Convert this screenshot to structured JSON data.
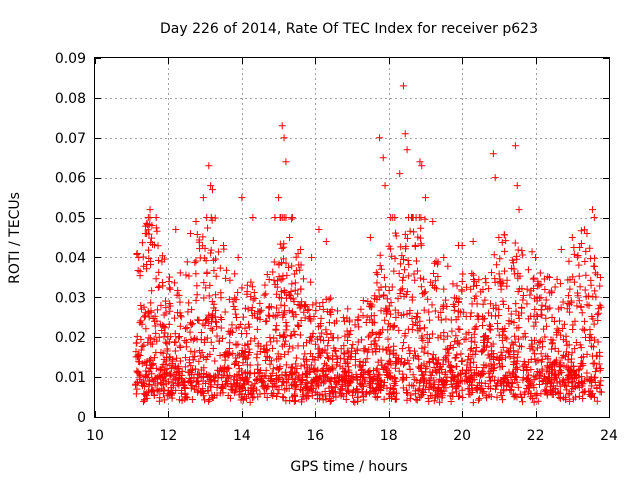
{
  "chart_data": {
    "type": "scatter",
    "title": "Day 226 of 2014, Rate Of TEC Index for receiver p623",
    "xlabel": "GPS time / hours",
    "ylabel": "ROTI / TECUs",
    "xlim": [
      10,
      24
    ],
    "ylim": [
      0,
      0.09
    ],
    "xticks": [
      10,
      12,
      14,
      16,
      18,
      20,
      22,
      24
    ],
    "xtick_labels": [
      "10",
      "12",
      "14",
      "16",
      "18",
      "20",
      "22",
      "24"
    ],
    "yticks": [
      0,
      0.01,
      0.02,
      0.03,
      0.04,
      0.05,
      0.06,
      0.07,
      0.08,
      0.09
    ],
    "ytick_labels": [
      "0",
      "0.01",
      "0.02",
      "0.03",
      "0.04",
      "0.05",
      "0.06",
      "0.07",
      "0.08",
      "0.09"
    ],
    "grid": true,
    "marker": "+",
    "color": "#ff0000",
    "x_data_range": [
      11.1,
      23.8
    ],
    "series": [
      {
        "name": "p623",
        "x": [
          11.15,
          11.4,
          11.5,
          11.55,
          12.2,
          12.6,
          12.75,
          12.95,
          13.1,
          13.15,
          13.2,
          13.5,
          13.9,
          14.0,
          14.3,
          14.9,
          15.0,
          15.1,
          15.15,
          15.2,
          15.3,
          15.6,
          15.9,
          16.1,
          16.3,
          17.5,
          17.75,
          17.85,
          17.9,
          18.3,
          18.4,
          18.45,
          18.5,
          18.85,
          18.9,
          19.0,
          19.2,
          19.5,
          19.9,
          20.0,
          20.3,
          20.85,
          20.9,
          21.0,
          21.45,
          21.5,
          21.55,
          22.0,
          22.7,
          23.0,
          23.4,
          23.55,
          23.6
        ],
        "y": [
          0.041,
          0.046,
          0.052,
          0.048,
          0.047,
          0.046,
          0.049,
          0.055,
          0.063,
          0.058,
          0.057,
          0.043,
          0.04,
          0.055,
          0.05,
          0.05,
          0.055,
          0.073,
          0.07,
          0.064,
          0.045,
          0.042,
          0.04,
          0.047,
          0.044,
          0.045,
          0.07,
          0.065,
          0.058,
          0.061,
          0.083,
          0.071,
          0.067,
          0.064,
          0.063,
          0.055,
          0.049,
          0.04,
          0.043,
          0.043,
          0.044,
          0.066,
          0.06,
          0.045,
          0.068,
          0.058,
          0.052,
          0.04,
          0.042,
          0.045,
          0.046,
          0.052,
          0.05
        ]
      }
    ]
  }
}
